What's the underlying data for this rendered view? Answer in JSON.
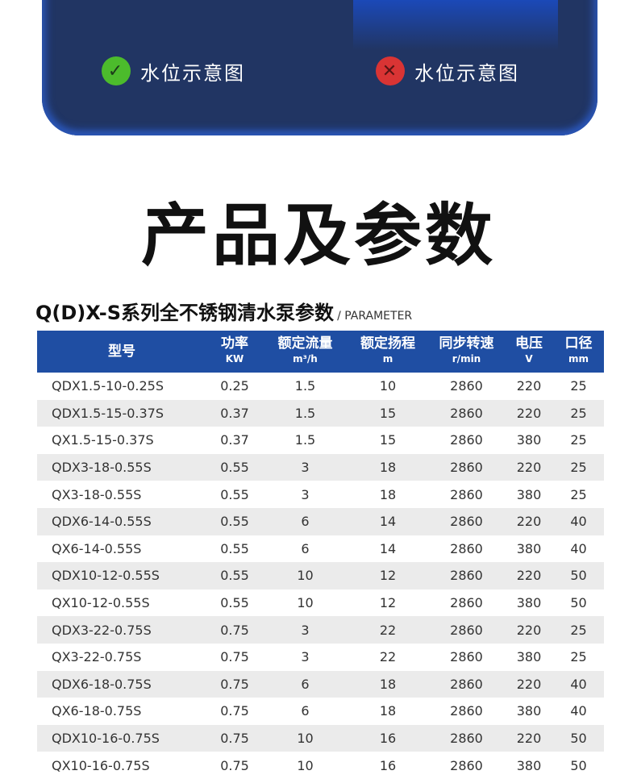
{
  "banner": {
    "captions": [
      {
        "icon": "check-icon",
        "text": "水位示意图"
      },
      {
        "icon": "cross-icon",
        "text": "水位示意图"
      }
    ]
  },
  "title": "产品及参数",
  "subtitle": {
    "main": "Q(D)X-S系列全不锈钢清水泵参数",
    "suffix": "/ PARAMETER"
  },
  "table": {
    "headers": [
      {
        "label": "型号",
        "unit": ""
      },
      {
        "label": "功率",
        "unit": "KW"
      },
      {
        "label": "额定流量",
        "unit": "m³/h"
      },
      {
        "label": "额定扬程",
        "unit": "m"
      },
      {
        "label": "同步转速",
        "unit": "r/min"
      },
      {
        "label": "电压",
        "unit": "V"
      },
      {
        "label": "口径",
        "unit": "mm"
      }
    ],
    "rows": [
      [
        "QDX1.5-10-0.25S",
        "0.25",
        "1.5",
        "10",
        "2860",
        "220",
        "25"
      ],
      [
        "QDX1.5-15-0.37S",
        "0.37",
        "1.5",
        "15",
        "2860",
        "220",
        "25"
      ],
      [
        "QX1.5-15-0.37S",
        "0.37",
        "1.5",
        "15",
        "2860",
        "380",
        "25"
      ],
      [
        "QDX3-18-0.55S",
        "0.55",
        "3",
        "18",
        "2860",
        "220",
        "25"
      ],
      [
        "QX3-18-0.55S",
        "0.55",
        "3",
        "18",
        "2860",
        "380",
        "25"
      ],
      [
        "QDX6-14-0.55S",
        "0.55",
        "6",
        "14",
        "2860",
        "220",
        "40"
      ],
      [
        "QX6-14-0.55S",
        "0.55",
        "6",
        "14",
        "2860",
        "380",
        "40"
      ],
      [
        "QDX10-12-0.55S",
        "0.55",
        "10",
        "12",
        "2860",
        "220",
        "50"
      ],
      [
        "QX10-12-0.55S",
        "0.55",
        "10",
        "12",
        "2860",
        "380",
        "50"
      ],
      [
        "QDX3-22-0.75S",
        "0.75",
        "3",
        "22",
        "2860",
        "220",
        "25"
      ],
      [
        "QX3-22-0.75S",
        "0.75",
        "3",
        "22",
        "2860",
        "380",
        "25"
      ],
      [
        "QDX6-18-0.75S",
        "0.75",
        "6",
        "18",
        "2860",
        "220",
        "40"
      ],
      [
        "QX6-18-0.75S",
        "0.75",
        "6",
        "18",
        "2860",
        "380",
        "40"
      ],
      [
        "QDX10-16-0.75S",
        "0.75",
        "10",
        "16",
        "2860",
        "220",
        "50"
      ],
      [
        "QX10-16-0.75S",
        "0.75",
        "10",
        "16",
        "2860",
        "380",
        "50"
      ]
    ]
  }
}
